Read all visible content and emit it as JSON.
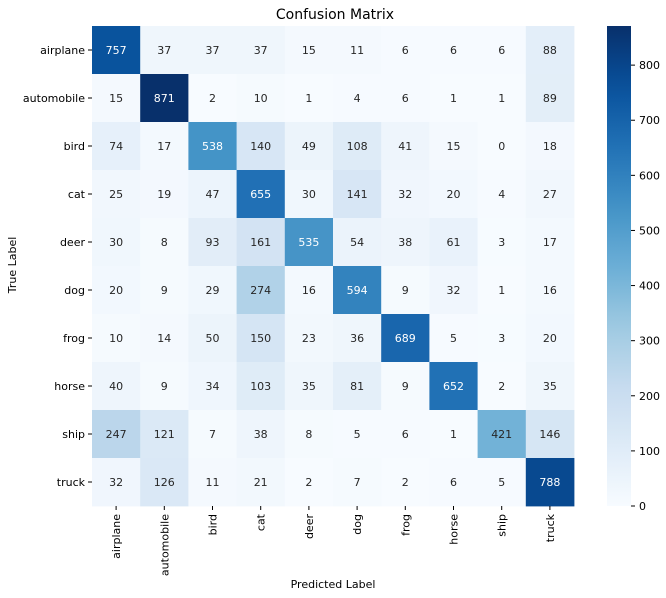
{
  "chart_data": {
    "type": "heatmap",
    "title": "Confusion Matrix",
    "xlabel": "Predicted Label",
    "ylabel": "True Label",
    "x_categories": [
      "airplane",
      "automobile",
      "bird",
      "cat",
      "deer",
      "dog",
      "frog",
      "horse",
      "ship",
      "truck"
    ],
    "y_categories": [
      "airplane",
      "automobile",
      "bird",
      "cat",
      "deer",
      "dog",
      "frog",
      "horse",
      "ship",
      "truck"
    ],
    "values": [
      [
        757,
        37,
        37,
        37,
        15,
        11,
        6,
        6,
        6,
        88
      ],
      [
        15,
        871,
        2,
        10,
        1,
        4,
        6,
        1,
        1,
        89
      ],
      [
        74,
        17,
        538,
        140,
        49,
        108,
        41,
        15,
        0,
        18
      ],
      [
        25,
        19,
        47,
        655,
        30,
        141,
        32,
        20,
        4,
        27
      ],
      [
        30,
        8,
        93,
        161,
        535,
        54,
        38,
        61,
        3,
        17
      ],
      [
        20,
        9,
        29,
        274,
        16,
        594,
        9,
        32,
        1,
        16
      ],
      [
        10,
        14,
        50,
        150,
        23,
        36,
        689,
        5,
        3,
        20
      ],
      [
        40,
        9,
        34,
        103,
        35,
        81,
        9,
        652,
        2,
        35
      ],
      [
        247,
        121,
        7,
        38,
        8,
        5,
        6,
        1,
        421,
        146
      ],
      [
        32,
        126,
        11,
        21,
        2,
        7,
        2,
        6,
        5,
        788
      ]
    ],
    "colormap": "Blues",
    "colorbar": {
      "min": 0,
      "max": 871,
      "ticks": [
        0,
        100,
        200,
        300,
        400,
        500,
        600,
        700,
        800
      ]
    },
    "colors": {
      "low": "#f7fbff",
      "high": "#08306b",
      "text_dark": "#262626",
      "text_light": "#ffffff"
    }
  }
}
